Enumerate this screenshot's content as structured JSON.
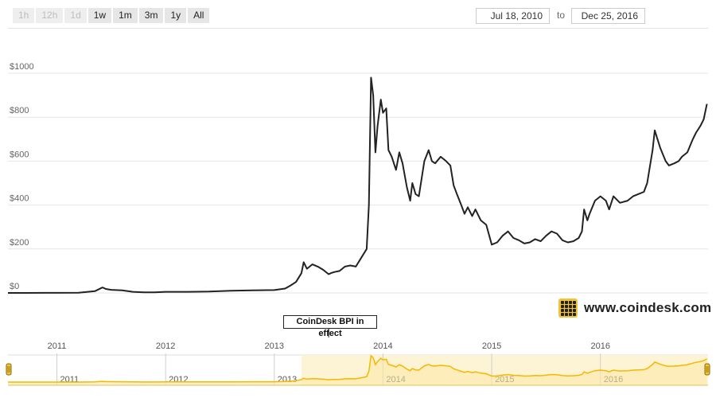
{
  "toolbar": {
    "ranges": [
      {
        "label": "1h",
        "enabled": false
      },
      {
        "label": "12h",
        "enabled": false
      },
      {
        "label": "1d",
        "enabled": false
      },
      {
        "label": "1w",
        "enabled": true
      },
      {
        "label": "1m",
        "enabled": true
      },
      {
        "label": "3m",
        "enabled": true
      },
      {
        "label": "1y",
        "enabled": true
      },
      {
        "label": "All",
        "enabled": true
      }
    ],
    "from_date": "Jul 18, 2010",
    "to_label": "to",
    "to_date": "Dec 25, 2016"
  },
  "brand": {
    "text": "www.coindesk.com",
    "logo_icon": "coindesk-logo-icon"
  },
  "annotation": {
    "text": "CoinDesk BPI in effect",
    "date": 2013.5
  },
  "colors": {
    "line": "#222222",
    "navigator_line": "#f5b800",
    "navigator_fill": "#fdf4d6",
    "grid": "#e6e6e6"
  },
  "chart_data": {
    "type": "line",
    "title": "",
    "xlabel": "",
    "ylabel": "",
    "ylim": [
      0,
      1000
    ],
    "xlim": [
      2010.55,
      2016.99
    ],
    "y_ticks": [
      0,
      200,
      400,
      600,
      800,
      1000
    ],
    "y_tick_labels": [
      "$0",
      "$200",
      "$400",
      "$600",
      "$800",
      "$1000"
    ],
    "x_ticks": [
      2011,
      2012,
      2013,
      2014,
      2015,
      2016
    ],
    "x_tick_labels": [
      "2011",
      "2012",
      "2013",
      "2014",
      "2015",
      "2016"
    ],
    "grid": true,
    "series": [
      {
        "x": [
          2010.55,
          2010.7,
          2010.9,
          2011.0,
          2011.2,
          2011.35,
          2011.42,
          2011.45,
          2011.5,
          2011.6,
          2011.7,
          2011.8,
          2011.9,
          2012.0,
          2012.2,
          2012.4,
          2012.6,
          2012.8,
          2013.0,
          2013.1,
          2013.15,
          2013.2,
          2013.25,
          2013.27,
          2013.3,
          2013.35,
          2013.4,
          2013.45,
          2013.5,
          2013.52,
          2013.55,
          2013.6,
          2013.65,
          2013.7,
          2013.75,
          2013.8,
          2013.85,
          2013.87,
          2013.89,
          2013.91,
          2013.93,
          2013.95,
          2013.98,
          2014.0,
          2014.03,
          2014.05,
          2014.08,
          2014.12,
          2014.15,
          2014.18,
          2014.22,
          2014.25,
          2014.27,
          2014.3,
          2014.33,
          2014.38,
          2014.42,
          2014.45,
          2014.48,
          2014.53,
          2014.58,
          2014.62,
          2014.65,
          2014.68,
          2014.72,
          2014.75,
          2014.78,
          2014.82,
          2014.85,
          2014.9,
          2014.95,
          2015.0,
          2015.05,
          2015.1,
          2015.15,
          2015.2,
          2015.25,
          2015.3,
          2015.35,
          2015.4,
          2015.45,
          2015.5,
          2015.55,
          2015.6,
          2015.65,
          2015.7,
          2015.75,
          2015.8,
          2015.83,
          2015.85,
          2015.88,
          2015.9,
          2015.95,
          2016.0,
          2016.05,
          2016.08,
          2016.12,
          2016.18,
          2016.25,
          2016.3,
          2016.35,
          2016.4,
          2016.43,
          2016.45,
          2016.48,
          2016.5,
          2016.55,
          2016.6,
          2016.63,
          2016.68,
          2016.72,
          2016.75,
          2016.8,
          2016.85,
          2016.88,
          2016.92,
          2016.95,
          2016.98
        ],
        "y": [
          0.07,
          0.06,
          0.2,
          0.3,
          0.9,
          8,
          25,
          18,
          14,
          12,
          5,
          3,
          3,
          5,
          5,
          6,
          10,
          12,
          13,
          20,
          34,
          50,
          90,
          140,
          110,
          130,
          120,
          105,
          85,
          90,
          95,
          100,
          120,
          125,
          120,
          160,
          200,
          400,
          980,
          900,
          640,
          760,
          880,
          820,
          840,
          650,
          620,
          560,
          640,
          590,
          480,
          420,
          500,
          450,
          440,
          600,
          650,
          600,
          590,
          620,
          600,
          580,
          490,
          450,
          400,
          360,
          390,
          350,
          380,
          330,
          310,
          220,
          230,
          260,
          280,
          250,
          240,
          225,
          230,
          245,
          235,
          260,
          280,
          270,
          240,
          230,
          235,
          250,
          280,
          380,
          330,
          360,
          420,
          440,
          420,
          380,
          440,
          410,
          420,
          440,
          450,
          460,
          500,
          560,
          650,
          740,
          660,
          600,
          580,
          590,
          600,
          620,
          640,
          700,
          730,
          760,
          790,
          860
        ]
      }
    ]
  }
}
